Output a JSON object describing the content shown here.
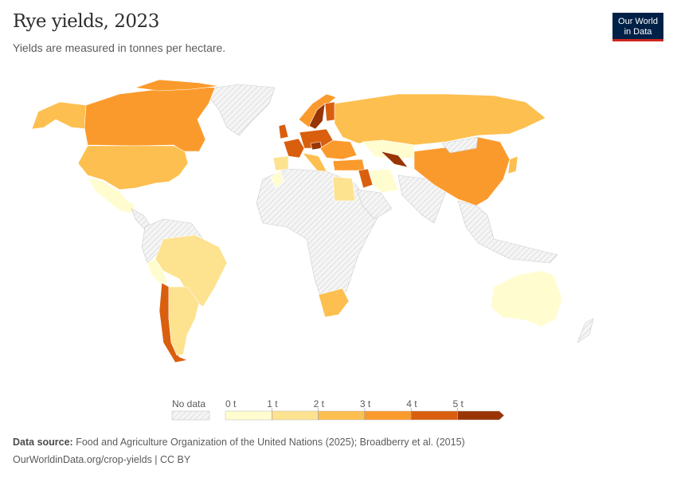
{
  "header": {
    "title": "Rye yields, 2023",
    "subtitle": "Yields are measured in tonnes per hectare.",
    "logo": {
      "line1": "Our World",
      "line2": "in Data",
      "bg_color": "#002147",
      "accent_color": "#ce261e"
    }
  },
  "legend": {
    "no_data_label": "No data",
    "ticks": [
      "0 t",
      "1 t",
      "2 t",
      "3 t",
      "4 t",
      "5 t"
    ],
    "bins": [
      {
        "range": "0-1 t",
        "color": "#fffdd0"
      },
      {
        "range": "1-2 t",
        "color": "#fde28f"
      },
      {
        "range": "2-3 t",
        "color": "#fdbf4f"
      },
      {
        "range": "3-4 t",
        "color": "#fb9a2c"
      },
      {
        "range": "4-5 t",
        "color": "#d95f0e"
      },
      {
        "range": ">5 t",
        "color": "#993404"
      }
    ]
  },
  "map_data": {
    "type": "choropleth",
    "projection": "robinson",
    "no_data_pattern": "hatched-gray"
  },
  "footer": {
    "source_label": "Data source:",
    "source_text": "Food and Agriculture Organization of the United Nations (2025); Broadberry et al. (2015)",
    "url_license": "OurWorldinData.org/crop-yields | CC BY"
  }
}
